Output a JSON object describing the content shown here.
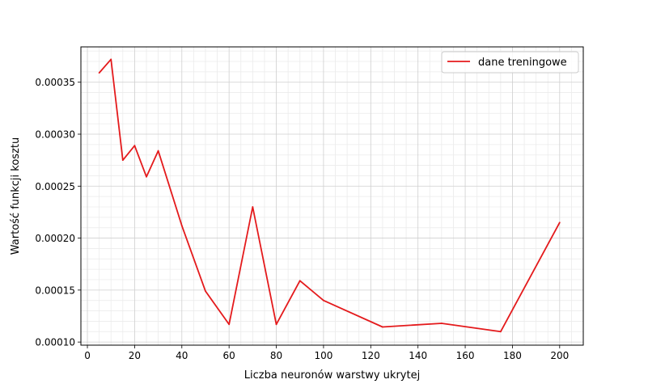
{
  "chart_data": {
    "type": "line",
    "title": "",
    "xlabel": "Liczba neuronów warstwy ukrytej",
    "ylabel": "Wartość funkcji kosztu",
    "xlim": [
      -2.75,
      210
    ],
    "ylim": [
      9.7e-05,
      0.000384
    ],
    "x_ticks": [
      0,
      20,
      40,
      60,
      80,
      100,
      120,
      140,
      160,
      180,
      200
    ],
    "x_tick_labels": [
      "0",
      "20",
      "40",
      "60",
      "80",
      "100",
      "120",
      "140",
      "160",
      "180",
      "200"
    ],
    "y_ticks": [
      0.0001,
      0.00015,
      0.0002,
      0.00025,
      0.0003,
      0.00035
    ],
    "y_tick_labels": [
      "0.00010",
      "0.00015",
      "0.00020",
      "0.00025",
      "0.00030",
      "0.00035"
    ],
    "x_minor_step": 5,
    "y_minor_step": 1e-05,
    "grid": true,
    "legend_position": "top-right",
    "series": [
      {
        "name": "dane treningowe",
        "color": "#e41a1c",
        "x": [
          5,
          10,
          15,
          20,
          25,
          30,
          40,
          50,
          60,
          70,
          80,
          90,
          100,
          125,
          150,
          175,
          200
        ],
        "y": [
          0.000359,
          0.000372,
          0.000275,
          0.000289,
          0.000259,
          0.000284,
          0.000212,
          0.000149,
          0.000117,
          0.00023,
          0.000117,
          0.000159,
          0.00014,
          0.0001145,
          0.000118,
          0.00011,
          0.000215
        ]
      }
    ]
  }
}
